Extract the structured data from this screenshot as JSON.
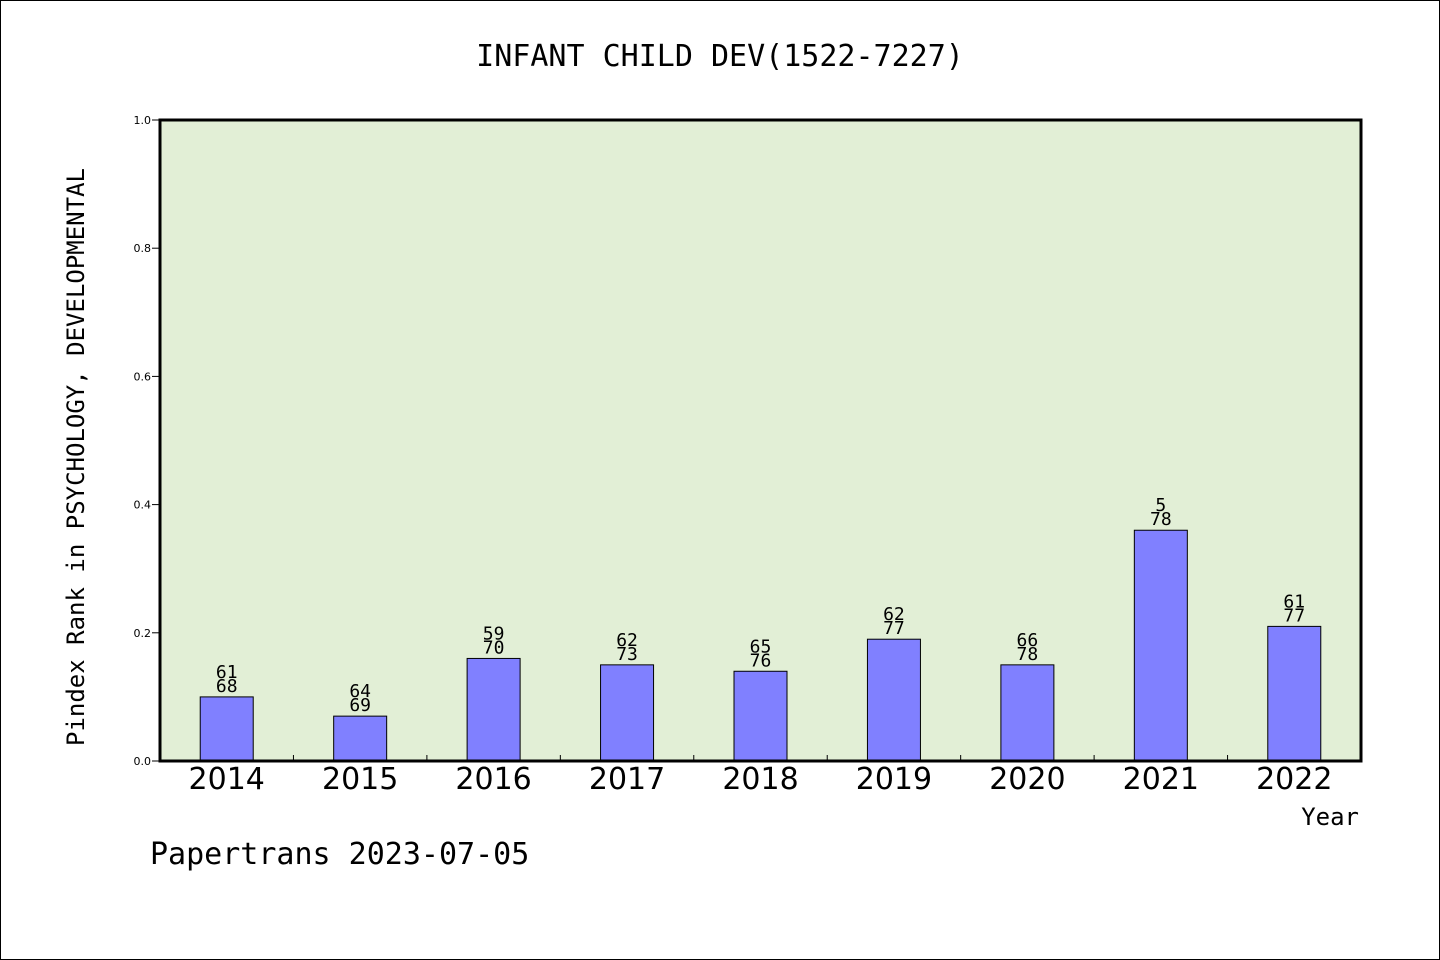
{
  "chart_data": {
    "type": "bar",
    "title": "INFANT CHILD DEV(1522-7227)",
    "xlabel": "Year",
    "ylabel": "Pindex Rank in PSYCHOLOGY, DEVELOPMENTAL",
    "ylim": [
      0,
      1.0
    ],
    "yticks": [
      "0.0",
      "0.2",
      "0.4",
      "0.6",
      "0.8",
      "1.0"
    ],
    "categories": [
      "2014",
      "2015",
      "2016",
      "2017",
      "2018",
      "2019",
      "2020",
      "2021",
      "2022"
    ],
    "values": [
      0.1,
      0.07,
      0.16,
      0.15,
      0.14,
      0.19,
      0.15,
      0.36,
      0.21
    ],
    "labels_top": [
      "61",
      "64",
      "59",
      "62",
      "65",
      "62",
      "66",
      "5",
      "61"
    ],
    "labels_bottom": [
      "68",
      "69",
      "70",
      "73",
      "76",
      "77",
      "78",
      "78",
      "77"
    ],
    "grid": false,
    "bar_color": "#8080ff",
    "plot_background": "#e2efd6"
  },
  "footer": {
    "credit": "Papertrans 2023-07-05"
  }
}
